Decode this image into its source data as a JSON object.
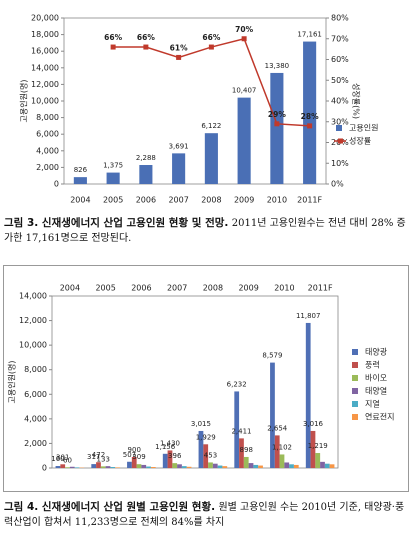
{
  "chart_data": [
    {
      "type": "bar",
      "title": "그림 3. 신재생에너지 산업 고용인원 현황 및 전망.",
      "subtitle": "2011년 고용인원수는 전년 대비 28% 증가한 17,161명으로 전망된다.",
      "y_label": "고용인원(명)",
      "y2_label": "성장률(%)",
      "categories": [
        "2004",
        "2005",
        "2006",
        "2007",
        "2008",
        "2009",
        "2010",
        "2011F"
      ],
      "series": [
        {
          "name": "고용인원",
          "type": "bar",
          "color": "#4a6fb5",
          "values": [
            826,
            1375,
            2288,
            3691,
            6122,
            10407,
            13380,
            17161
          ],
          "value_labels": [
            "826",
            "1,375",
            "2,288",
            "3,691",
            "6,122",
            "10,407",
            "13,380",
            "17,161"
          ]
        },
        {
          "name": "성장률",
          "type": "line",
          "axis": "y2",
          "color": "#c0392b",
          "values": [
            null,
            66,
            66,
            61,
            66,
            70,
            29,
            28
          ],
          "value_labels": [
            null,
            "66%",
            "66%",
            "61%",
            "66%",
            "70%",
            "29%",
            "28%"
          ]
        }
      ],
      "ylim": [
        0,
        20000
      ],
      "yticks": [
        0,
        {
          "value": 2000,
          "label": "2,000"
        },
        {
          "value": 4000,
          "label": "4,000"
        },
        {
          "value": 6000,
          "label": "6,000"
        },
        {
          "value": 8000,
          "label": "8,000"
        },
        {
          "value": 10000,
          "label": "10,000"
        },
        {
          "value": 12000,
          "label": "12,000"
        },
        {
          "value": 14000,
          "label": "14,000"
        },
        {
          "value": 16000,
          "label": "16,000"
        },
        {
          "value": 18000,
          "label": "18,000"
        },
        {
          "value": 20000,
          "label": "20,000"
        }
      ],
      "y2lim": [
        0,
        80
      ],
      "y2ticks": [
        {
          "value": 0,
          "label": "0%"
        },
        {
          "value": 10,
          "label": "10%"
        },
        {
          "value": 20,
          "label": "20%"
        },
        {
          "value": 30,
          "label": "30%"
        },
        {
          "value": 40,
          "label": "40%"
        },
        {
          "value": 50,
          "label": "50%"
        },
        {
          "value": 60,
          "label": "60%"
        },
        {
          "value": 70,
          "label": "70%"
        },
        {
          "value": 80,
          "label": "80%"
        }
      ],
      "grid": false,
      "legend": "right"
    },
    {
      "type": "bar",
      "title": "그림 4. 신재생에너지 산업 원별 고용인원 현황.",
      "subtitle": "원별 고용인원 수는 2010년 기준, 태양광·풍력산업이 합쳐서 11,233명으로 전체의 84%를 차지",
      "y_label": "고용인원(명)",
      "categories": [
        "2004",
        "2005",
        "2006",
        "2007",
        "2008",
        "2009",
        "2010",
        "2011F"
      ],
      "series": [
        {
          "name": "태양광",
          "color": "#4f6fb5",
          "values": [
            160,
            317,
            507,
            1156,
            3015,
            6232,
            8579,
            11807
          ],
          "value_labels": [
            "160",
            "317",
            "507",
            "1,156",
            "3,015",
            "6,232",
            "8,579",
            "11,807"
          ]
        },
        {
          "name": "풍력",
          "color": "#c0504d",
          "values": [
            301,
            472,
            900,
            1430,
            1929,
            2411,
            2654,
            3016
          ],
          "value_labels": [
            "301",
            "472",
            "900",
            "1,430",
            "1,929",
            "2,411",
            "2,654",
            "3,016"
          ]
        },
        {
          "name": "바이오",
          "color": "#9bbb59",
          "values": [
            60,
            133,
            309,
            396,
            453,
            898,
            1102,
            1219
          ],
          "value_labels": [
            "60",
            "133",
            "309",
            "396",
            "453",
            "898",
            "1,102",
            "1,219"
          ]
        },
        {
          "name": "태양열",
          "color": "#8064a2",
          "values": [
            100,
            150,
            250,
            300,
            350,
            400,
            450,
            500
          ]
        },
        {
          "name": "지열",
          "color": "#4bacc6",
          "values": [
            50,
            80,
            120,
            150,
            200,
            250,
            300,
            350
          ]
        },
        {
          "name": "연료전지",
          "color": "#f79646",
          "values": [
            30,
            50,
            80,
            100,
            150,
            200,
            250,
            300
          ]
        }
      ],
      "ylim": [
        0,
        14000
      ],
      "yticks": [
        0,
        {
          "value": 2000,
          "label": "2,000"
        },
        {
          "value": 4000,
          "label": "4,000"
        },
        {
          "value": 6000,
          "label": "6,000"
        },
        {
          "value": 8000,
          "label": "8,000"
        },
        {
          "value": 10000,
          "label": "10,000"
        },
        {
          "value": 12000,
          "label": "12,000"
        },
        {
          "value": 14000,
          "label": "14,000"
        }
      ],
      "grid": false,
      "legend": "right"
    }
  ]
}
